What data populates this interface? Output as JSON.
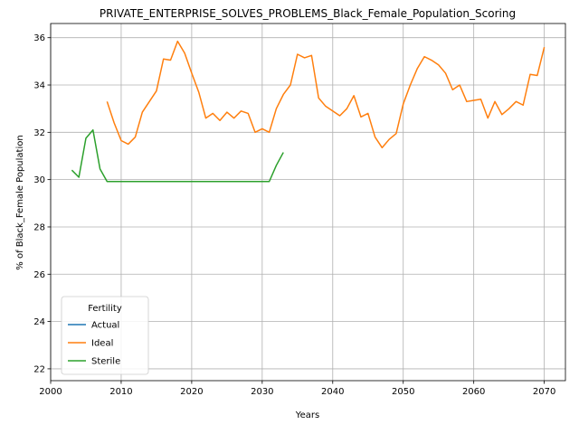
{
  "chart_data": {
    "type": "line",
    "title": "PRIVATE_ENTERPRISE_SOLVES_PROBLEMS_Black_Female_Population_Scoring",
    "xlabel": "Years",
    "ylabel": "% of Black_Female Population",
    "xlim": [
      2000,
      2073
    ],
    "ylim": [
      21.5,
      36.6
    ],
    "xticks": [
      2000,
      2010,
      2020,
      2030,
      2040,
      2050,
      2060,
      2070
    ],
    "yticks": [
      22,
      24,
      26,
      28,
      30,
      32,
      34,
      36
    ],
    "grid": true,
    "legend": {
      "title": "Fertility",
      "placement": "lower-left"
    },
    "series": [
      {
        "name": "Actual",
        "color": "#1f77b4",
        "x": [],
        "y": []
      },
      {
        "name": "Ideal",
        "color": "#ff7f0e",
        "x": [
          2008,
          2009,
          2010,
          2011,
          2012,
          2013,
          2014,
          2015,
          2016,
          2017,
          2018,
          2019,
          2020,
          2021,
          2022,
          2023,
          2024,
          2025,
          2026,
          2027,
          2028,
          2029,
          2030,
          2031,
          2032,
          2033,
          2034,
          2035,
          2036,
          2037,
          2038,
          2039,
          2040,
          2041,
          2042,
          2043,
          2044,
          2045,
          2046,
          2047,
          2048,
          2049,
          2050,
          2051,
          2052,
          2053,
          2054,
          2055,
          2056,
          2057,
          2058,
          2059,
          2060,
          2061,
          2062,
          2063,
          2064,
          2065,
          2066,
          2067,
          2068,
          2069,
          2070
        ],
        "y": [
          33.3,
          32.4,
          31.65,
          31.5,
          31.8,
          32.85,
          33.3,
          33.75,
          35.1,
          35.05,
          35.85,
          35.35,
          34.5,
          33.7,
          32.6,
          32.8,
          32.5,
          32.85,
          32.6,
          32.9,
          32.8,
          32.0,
          32.15,
          32.0,
          33.0,
          33.6,
          34.0,
          35.3,
          35.15,
          35.25,
          33.45,
          33.1,
          32.9,
          32.7,
          33.0,
          33.55,
          32.65,
          32.8,
          31.8,
          31.35,
          31.7,
          31.95,
          33.2,
          34.0,
          34.7,
          35.2,
          35.05,
          34.85,
          34.5,
          33.8,
          34.0,
          33.3,
          33.35,
          33.4,
          32.6,
          33.3,
          32.75,
          33.0,
          33.3,
          33.15,
          34.45,
          34.4,
          35.6
        ]
      },
      {
        "name": "Sterile",
        "color": "#2ca02c",
        "x": [
          2003,
          2004,
          2005,
          2006,
          2007,
          2008,
          2009,
          2010,
          2011,
          2012,
          2013,
          2014,
          2015,
          2016,
          2017,
          2018,
          2019,
          2020,
          2021,
          2022,
          2023,
          2024,
          2025,
          2026,
          2027,
          2028,
          2029,
          2030,
          2031,
          2032,
          2033
        ],
        "y": [
          30.4,
          30.1,
          31.75,
          32.1,
          30.45,
          29.92,
          29.92,
          29.92,
          29.92,
          29.92,
          29.92,
          29.92,
          29.92,
          29.92,
          29.92,
          29.92,
          29.92,
          29.92,
          29.92,
          29.92,
          29.92,
          29.92,
          29.92,
          29.92,
          29.92,
          29.92,
          29.92,
          29.92,
          29.92,
          30.6,
          31.15
        ]
      }
    ]
  }
}
